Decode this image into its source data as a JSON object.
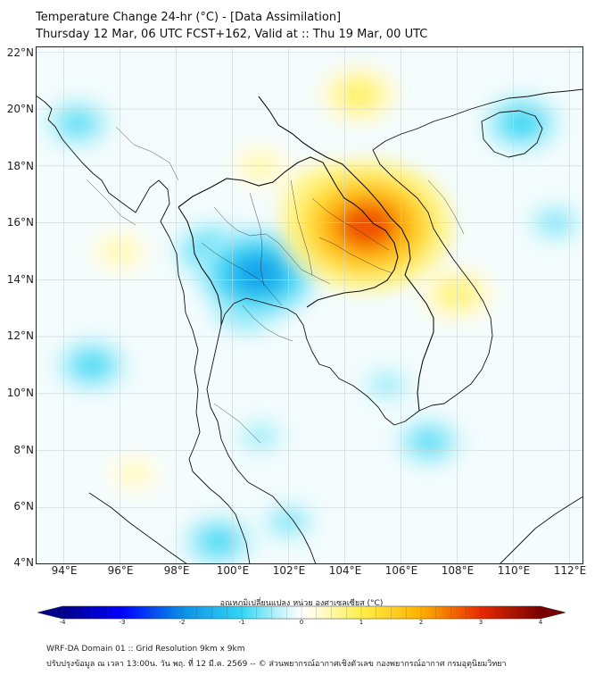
{
  "header": {
    "title_line1": "Temperature Change 24-hr (°C) - [Data Assimilation]",
    "title_line2": "Thursday 12 Mar, 06 UTC FCST+162, Valid at :: Thu 19 Mar, 00 UTC"
  },
  "axes": {
    "lat_labels": [
      "22°N",
      "20°N",
      "18°N",
      "16°N",
      "14°N",
      "12°N",
      "10°N",
      "8°N",
      "6°N",
      "4°N"
    ],
    "lat_values": [
      22,
      20,
      18,
      16,
      14,
      12,
      10,
      8,
      6,
      4
    ],
    "lon_labels": [
      "94°E",
      "96°E",
      "98°E",
      "100°E",
      "102°E",
      "104°E",
      "106°E",
      "108°E",
      "110°E",
      "112°E"
    ],
    "lon_values": [
      94,
      96,
      98,
      100,
      102,
      104,
      106,
      108,
      110,
      112
    ],
    "lon_range": [
      93,
      112.5
    ],
    "lat_range": [
      4,
      22.2
    ]
  },
  "field": {
    "variable": "24-hr temperature change",
    "units": "°C",
    "warm_centers": [
      {
        "lon": 104.8,
        "lat": 15.9,
        "value": 2.8
      },
      {
        "lon": 103.5,
        "lat": 16.8,
        "value": 1.4
      },
      {
        "lon": 104.5,
        "lat": 20.5,
        "value": 0.9
      },
      {
        "lon": 108.0,
        "lat": 13.5,
        "value": 0.8
      },
      {
        "lon": 103.0,
        "lat": 15.5,
        "value": 0.9
      },
      {
        "lon": 96.0,
        "lat": 15.0,
        "value": 0.5
      },
      {
        "lon": 96.5,
        "lat": 7.2,
        "value": 0.4
      },
      {
        "lon": 101.0,
        "lat": 18.0,
        "value": 0.5
      }
    ],
    "cold_centers": [
      {
        "lon": 100.9,
        "lat": 14.2,
        "value": -1.8
      },
      {
        "lon": 99.3,
        "lat": 15.0,
        "value": -1.0
      },
      {
        "lon": 100.5,
        "lat": 13.0,
        "value": -0.9
      },
      {
        "lon": 95.0,
        "lat": 11.0,
        "value": -0.9
      },
      {
        "lon": 94.5,
        "lat": 19.5,
        "value": -0.8
      },
      {
        "lon": 110.3,
        "lat": 19.5,
        "value": -1.0
      },
      {
        "lon": 107.0,
        "lat": 8.3,
        "value": -0.8
      },
      {
        "lon": 99.5,
        "lat": 4.8,
        "value": -0.9
      },
      {
        "lon": 102.0,
        "lat": 5.5,
        "value": -0.6
      },
      {
        "lon": 105.5,
        "lat": 10.3,
        "value": -0.5
      },
      {
        "lon": 101.0,
        "lat": 8.5,
        "value": -0.5
      },
      {
        "lon": 111.5,
        "lat": 16.0,
        "value": -0.6
      }
    ]
  },
  "colorbar": {
    "title": "อุณหภูมิเปลี่ยนแปลง หน่วย องศาเซลเซียส (°C)",
    "min": -4,
    "max": 4,
    "tick_values": [
      -4,
      -3,
      -2,
      -1,
      0,
      1,
      2,
      3,
      4
    ],
    "tick_labels": [
      "-4",
      "-3",
      "-2",
      "-1",
      "0",
      "1",
      "2",
      "3",
      "4"
    ],
    "stops": [
      {
        "v": -4,
        "color": "#00008b"
      },
      {
        "v": -3,
        "color": "#0000ff"
      },
      {
        "v": -2,
        "color": "#0a8fe6"
      },
      {
        "v": -1,
        "color": "#33d6f5"
      },
      {
        "v": -0.3,
        "color": "#cdf6fb"
      },
      {
        "v": 0,
        "color": "#ffffff"
      },
      {
        "v": 0.3,
        "color": "#fffbd0"
      },
      {
        "v": 1,
        "color": "#ffef4a"
      },
      {
        "v": 2,
        "color": "#ffb000"
      },
      {
        "v": 3,
        "color": "#e82a00"
      },
      {
        "v": 4,
        "color": "#7a0000"
      }
    ]
  },
  "footer": {
    "line1": "WRF-DA Domain 01 :: Grid Resolution 9km x 9km",
    "line2": "ปรับปรุงข้อมูล ณ เวลา 13:00น. วัน พฤ. ที่ 12 มี.ค. 2569 -- © ส่วนพยากรณ์อากาศเชิงตัวเลข กองพยากรณ์อากาศ กรมอุตุนิยมวิทยา"
  }
}
